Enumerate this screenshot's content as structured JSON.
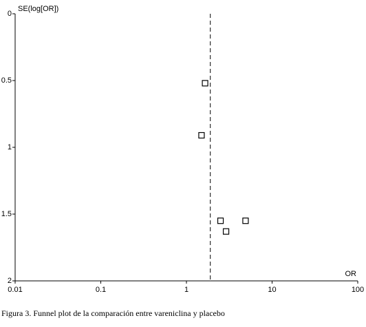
{
  "chart_data": {
    "type": "scatter",
    "y_label": "SE(log[OR])",
    "x_label": "OR",
    "caption": "Figura 3. Funnel plot de la comparación entre vareniclina y placebo",
    "x": [
      1.65,
      1.5,
      2.5,
      2.9,
      4.9
    ],
    "values": [
      0.52,
      0.91,
      1.55,
      1.63,
      1.55
    ],
    "color": "#000000",
    "reference_line": 1.9,
    "x_log": true,
    "y_inverted": true,
    "xlim": [
      0.01,
      100
    ],
    "xticks": [
      0.01,
      0.1,
      1,
      10,
      100
    ],
    "ylim": [
      0,
      2
    ],
    "yticks": [
      0,
      0.5,
      1,
      1.5,
      2
    ]
  }
}
